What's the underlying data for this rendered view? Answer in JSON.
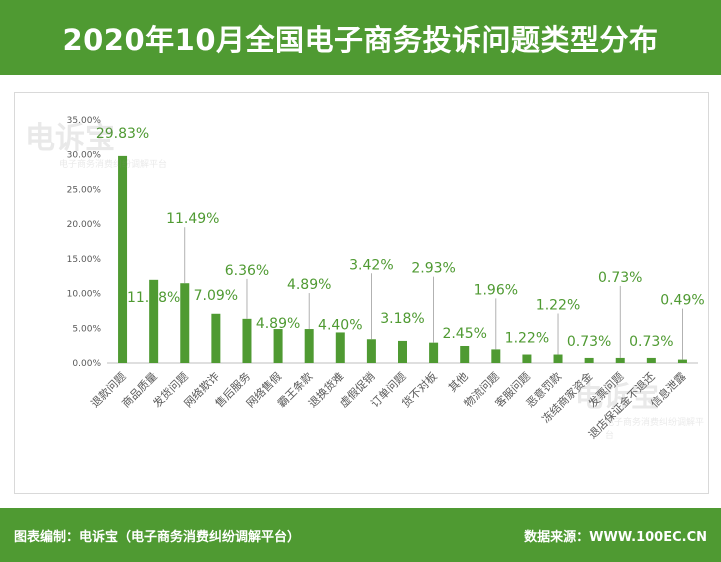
{
  "header": {
    "title": "2020年10月全国电子商务投诉问题类型分布"
  },
  "watermark": {
    "brand": "电诉宝",
    "subtitle": "电子商务消费纠纷调解平台"
  },
  "footer": {
    "credit": "图表编制：电诉宝（电子商务消费纠纷调解平台）",
    "source": "数据来源：WWW.100EC.CN"
  },
  "colors": {
    "brand_green": "#4f9a32",
    "bar": "#4f9a32",
    "label": "#4f9a32"
  },
  "chart_data": {
    "type": "bar",
    "title": "2020年10月全国电子商务投诉问题类型分布",
    "xlabel": "",
    "ylabel": "",
    "ylim": [
      0,
      35
    ],
    "yticks": [
      "0.00%",
      "5.00%",
      "10.00%",
      "15.00%",
      "20.00%",
      "25.00%",
      "30.00%",
      "35.00%"
    ],
    "grid": false,
    "categories": [
      "退款问题",
      "商品质量",
      "发货问题",
      "网络欺诈",
      "售后服务",
      "网络售假",
      "霸王条款",
      "退换货难",
      "虚假促销",
      "订单问题",
      "货不对板",
      "其他",
      "物流问题",
      "客服问题",
      "恶意罚款",
      "冻结商家资金",
      "发票问题",
      "退店保证金不退还",
      "信息泄露"
    ],
    "values": [
      29.83,
      11.98,
      11.49,
      7.09,
      6.36,
      4.89,
      4.89,
      4.4,
      3.42,
      3.18,
      2.93,
      2.45,
      1.96,
      1.22,
      1.22,
      0.73,
      0.73,
      0.73,
      0.49
    ],
    "labels": [
      "29.83%",
      "11.98%",
      "11.49%",
      "7.09%",
      "6.36%",
      "4.89%",
      "4.89%",
      "4.40%",
      "3.42%",
      "3.18%",
      "2.93%",
      "2.45%",
      "1.96%",
      "1.22%",
      "1.22%",
      "0.73%",
      "0.73%",
      "0.73%",
      "0.49%"
    ]
  }
}
